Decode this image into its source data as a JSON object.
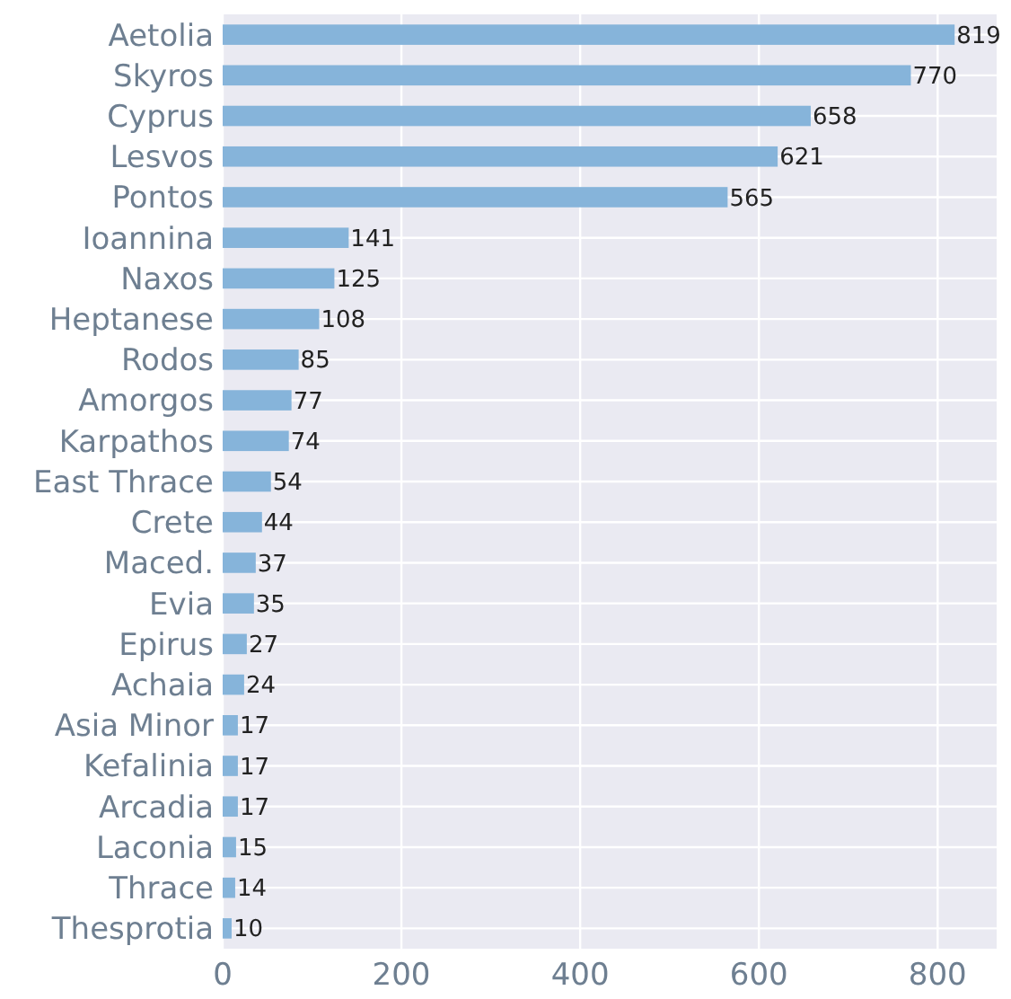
{
  "chart_data": {
    "type": "bar",
    "orientation": "horizontal",
    "categories": [
      "Aetolia",
      "Skyros",
      "Cyprus",
      "Lesvos",
      "Pontos",
      "Ioannina",
      "Naxos",
      "Heptanese",
      "Rodos",
      "Amorgos",
      "Karpathos",
      "East Thrace",
      "Crete",
      "Maced.",
      "Evia",
      "Epirus",
      "Achaia",
      "Asia Minor",
      "Kefalinia",
      "Arcadia",
      "Laconia",
      "Thrace",
      "Thesprotia"
    ],
    "values": [
      819,
      770,
      658,
      621,
      565,
      141,
      125,
      108,
      85,
      77,
      74,
      54,
      44,
      37,
      35,
      27,
      24,
      17,
      17,
      17,
      15,
      14,
      10
    ],
    "color": "#86b4da",
    "xlim": [
      0,
      866
    ],
    "xticks": [
      0,
      200,
      400,
      600,
      800
    ],
    "grid": true,
    "data_labels": true
  }
}
